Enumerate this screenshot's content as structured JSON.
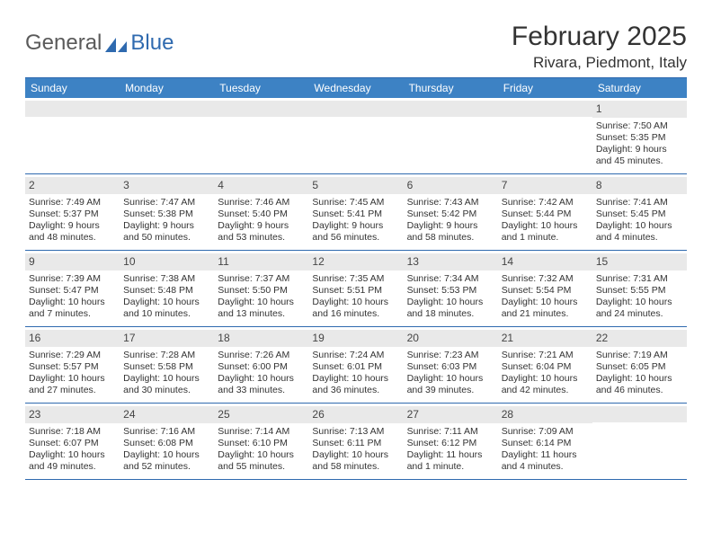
{
  "logo": {
    "text1": "General",
    "text2": "Blue"
  },
  "title": "February 2025",
  "location": "Rivara, Piedmont, Italy",
  "colors": {
    "header_bar": "#3d82c4",
    "divider": "#2f6aaf",
    "day_band": "#e9e9e9",
    "text": "#333333",
    "logo_gray": "#5a5a5a",
    "logo_blue": "#2f6aaf",
    "background": "#ffffff"
  },
  "dow": [
    "Sunday",
    "Monday",
    "Tuesday",
    "Wednesday",
    "Thursday",
    "Friday",
    "Saturday"
  ],
  "weeks": [
    [
      {
        "n": "",
        "sunrise": "",
        "sunset": "",
        "daylight": ""
      },
      {
        "n": "",
        "sunrise": "",
        "sunset": "",
        "daylight": ""
      },
      {
        "n": "",
        "sunrise": "",
        "sunset": "",
        "daylight": ""
      },
      {
        "n": "",
        "sunrise": "",
        "sunset": "",
        "daylight": ""
      },
      {
        "n": "",
        "sunrise": "",
        "sunset": "",
        "daylight": ""
      },
      {
        "n": "",
        "sunrise": "",
        "sunset": "",
        "daylight": ""
      },
      {
        "n": "1",
        "sunrise": "Sunrise: 7:50 AM",
        "sunset": "Sunset: 5:35 PM",
        "daylight": "Daylight: 9 hours and 45 minutes."
      }
    ],
    [
      {
        "n": "2",
        "sunrise": "Sunrise: 7:49 AM",
        "sunset": "Sunset: 5:37 PM",
        "daylight": "Daylight: 9 hours and 48 minutes."
      },
      {
        "n": "3",
        "sunrise": "Sunrise: 7:47 AM",
        "sunset": "Sunset: 5:38 PM",
        "daylight": "Daylight: 9 hours and 50 minutes."
      },
      {
        "n": "4",
        "sunrise": "Sunrise: 7:46 AM",
        "sunset": "Sunset: 5:40 PM",
        "daylight": "Daylight: 9 hours and 53 minutes."
      },
      {
        "n": "5",
        "sunrise": "Sunrise: 7:45 AM",
        "sunset": "Sunset: 5:41 PM",
        "daylight": "Daylight: 9 hours and 56 minutes."
      },
      {
        "n": "6",
        "sunrise": "Sunrise: 7:43 AM",
        "sunset": "Sunset: 5:42 PM",
        "daylight": "Daylight: 9 hours and 58 minutes."
      },
      {
        "n": "7",
        "sunrise": "Sunrise: 7:42 AM",
        "sunset": "Sunset: 5:44 PM",
        "daylight": "Daylight: 10 hours and 1 minute."
      },
      {
        "n": "8",
        "sunrise": "Sunrise: 7:41 AM",
        "sunset": "Sunset: 5:45 PM",
        "daylight": "Daylight: 10 hours and 4 minutes."
      }
    ],
    [
      {
        "n": "9",
        "sunrise": "Sunrise: 7:39 AM",
        "sunset": "Sunset: 5:47 PM",
        "daylight": "Daylight: 10 hours and 7 minutes."
      },
      {
        "n": "10",
        "sunrise": "Sunrise: 7:38 AM",
        "sunset": "Sunset: 5:48 PM",
        "daylight": "Daylight: 10 hours and 10 minutes."
      },
      {
        "n": "11",
        "sunrise": "Sunrise: 7:37 AM",
        "sunset": "Sunset: 5:50 PM",
        "daylight": "Daylight: 10 hours and 13 minutes."
      },
      {
        "n": "12",
        "sunrise": "Sunrise: 7:35 AM",
        "sunset": "Sunset: 5:51 PM",
        "daylight": "Daylight: 10 hours and 16 minutes."
      },
      {
        "n": "13",
        "sunrise": "Sunrise: 7:34 AM",
        "sunset": "Sunset: 5:53 PM",
        "daylight": "Daylight: 10 hours and 18 minutes."
      },
      {
        "n": "14",
        "sunrise": "Sunrise: 7:32 AM",
        "sunset": "Sunset: 5:54 PM",
        "daylight": "Daylight: 10 hours and 21 minutes."
      },
      {
        "n": "15",
        "sunrise": "Sunrise: 7:31 AM",
        "sunset": "Sunset: 5:55 PM",
        "daylight": "Daylight: 10 hours and 24 minutes."
      }
    ],
    [
      {
        "n": "16",
        "sunrise": "Sunrise: 7:29 AM",
        "sunset": "Sunset: 5:57 PM",
        "daylight": "Daylight: 10 hours and 27 minutes."
      },
      {
        "n": "17",
        "sunrise": "Sunrise: 7:28 AM",
        "sunset": "Sunset: 5:58 PM",
        "daylight": "Daylight: 10 hours and 30 minutes."
      },
      {
        "n": "18",
        "sunrise": "Sunrise: 7:26 AM",
        "sunset": "Sunset: 6:00 PM",
        "daylight": "Daylight: 10 hours and 33 minutes."
      },
      {
        "n": "19",
        "sunrise": "Sunrise: 7:24 AM",
        "sunset": "Sunset: 6:01 PM",
        "daylight": "Daylight: 10 hours and 36 minutes."
      },
      {
        "n": "20",
        "sunrise": "Sunrise: 7:23 AM",
        "sunset": "Sunset: 6:03 PM",
        "daylight": "Daylight: 10 hours and 39 minutes."
      },
      {
        "n": "21",
        "sunrise": "Sunrise: 7:21 AM",
        "sunset": "Sunset: 6:04 PM",
        "daylight": "Daylight: 10 hours and 42 minutes."
      },
      {
        "n": "22",
        "sunrise": "Sunrise: 7:19 AM",
        "sunset": "Sunset: 6:05 PM",
        "daylight": "Daylight: 10 hours and 46 minutes."
      }
    ],
    [
      {
        "n": "23",
        "sunrise": "Sunrise: 7:18 AM",
        "sunset": "Sunset: 6:07 PM",
        "daylight": "Daylight: 10 hours and 49 minutes."
      },
      {
        "n": "24",
        "sunrise": "Sunrise: 7:16 AM",
        "sunset": "Sunset: 6:08 PM",
        "daylight": "Daylight: 10 hours and 52 minutes."
      },
      {
        "n": "25",
        "sunrise": "Sunrise: 7:14 AM",
        "sunset": "Sunset: 6:10 PM",
        "daylight": "Daylight: 10 hours and 55 minutes."
      },
      {
        "n": "26",
        "sunrise": "Sunrise: 7:13 AM",
        "sunset": "Sunset: 6:11 PM",
        "daylight": "Daylight: 10 hours and 58 minutes."
      },
      {
        "n": "27",
        "sunrise": "Sunrise: 7:11 AM",
        "sunset": "Sunset: 6:12 PM",
        "daylight": "Daylight: 11 hours and 1 minute."
      },
      {
        "n": "28",
        "sunrise": "Sunrise: 7:09 AM",
        "sunset": "Sunset: 6:14 PM",
        "daylight": "Daylight: 11 hours and 4 minutes."
      },
      {
        "n": "",
        "sunrise": "",
        "sunset": "",
        "daylight": ""
      }
    ]
  ]
}
